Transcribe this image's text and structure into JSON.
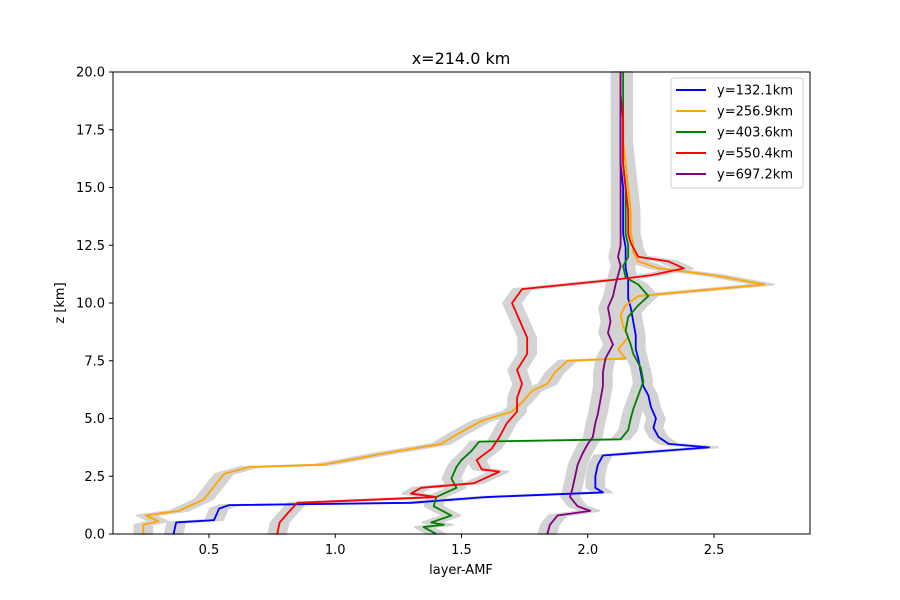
{
  "chart_data": {
    "type": "line",
    "title": "x=214.0 km",
    "xlabel": "layer-AMF",
    "ylabel": "z [km]",
    "xlim": [
      0.12,
      2.88
    ],
    "ylim": [
      0,
      20
    ],
    "xticks": [
      0.5,
      1.0,
      1.5,
      2.0,
      2.5
    ],
    "xtick_labels": [
      "0.5",
      "1.0",
      "1.5",
      "2.0",
      "2.5"
    ],
    "yticks": [
      0,
      2.5,
      5,
      7.5,
      10,
      12.5,
      15,
      17.5,
      20
    ],
    "ytick_labels": [
      "0.0",
      "2.5",
      "5.0",
      "7.5",
      "10.0",
      "12.5",
      "15.0",
      "17.5",
      "20.0"
    ],
    "grid": false,
    "legend_position": "top-right",
    "uncertainty_band": true,
    "band_color": "#d3d3d3",
    "series": [
      {
        "name": "y=132.1km",
        "color": "#0000ff",
        "points": [
          [
            0.36,
            0
          ],
          [
            0.37,
            0.5
          ],
          [
            0.52,
            0.6
          ],
          [
            0.54,
            1.1
          ],
          [
            0.58,
            1.25
          ],
          [
            1.3,
            1.35
          ],
          [
            1.6,
            1.6
          ],
          [
            2.06,
            1.8
          ],
          [
            2.03,
            2.0
          ],
          [
            2.03,
            2.5
          ],
          [
            2.04,
            3.0
          ],
          [
            2.06,
            3.4
          ],
          [
            2.48,
            3.75
          ],
          [
            2.32,
            3.9
          ],
          [
            2.28,
            4.2
          ],
          [
            2.26,
            4.6
          ],
          [
            2.27,
            5.0
          ],
          [
            2.25,
            5.5
          ],
          [
            2.24,
            6.0
          ],
          [
            2.22,
            6.4
          ],
          [
            2.21,
            7.0
          ],
          [
            2.2,
            7.6
          ],
          [
            2.19,
            8.0
          ],
          [
            2.19,
            8.6
          ],
          [
            2.18,
            9.2
          ],
          [
            2.17,
            9.8
          ],
          [
            2.16,
            10.2
          ],
          [
            2.16,
            10.6
          ],
          [
            2.16,
            11.0
          ],
          [
            2.15,
            11.5
          ],
          [
            2.15,
            12.0
          ],
          [
            2.15,
            12.4
          ],
          [
            2.14,
            13.0
          ],
          [
            2.14,
            14.0
          ],
          [
            2.14,
            15.0
          ],
          [
            2.13,
            16.0
          ],
          [
            2.13,
            17.0
          ],
          [
            2.13,
            18.0
          ],
          [
            2.13,
            19.0
          ],
          [
            2.13,
            20.0
          ]
        ]
      },
      {
        "name": "y=256.9km",
        "color": "#ffa500",
        "points": [
          [
            0.24,
            0
          ],
          [
            0.24,
            0.4
          ],
          [
            0.3,
            0.55
          ],
          [
            0.25,
            0.8
          ],
          [
            0.38,
            1.0
          ],
          [
            0.48,
            1.5
          ],
          [
            0.53,
            2.2
          ],
          [
            0.56,
            2.6
          ],
          [
            0.66,
            2.9
          ],
          [
            0.95,
            3.0
          ],
          [
            1.05,
            3.2
          ],
          [
            1.2,
            3.5
          ],
          [
            1.42,
            3.9
          ],
          [
            1.48,
            4.3
          ],
          [
            1.58,
            4.9
          ],
          [
            1.7,
            5.3
          ],
          [
            1.74,
            5.7
          ],
          [
            1.78,
            6.2
          ],
          [
            1.84,
            6.5
          ],
          [
            1.87,
            7.0
          ],
          [
            1.92,
            7.5
          ],
          [
            2.15,
            7.6
          ],
          [
            2.12,
            8.0
          ],
          [
            2.16,
            8.5
          ],
          [
            2.14,
            9.0
          ],
          [
            2.13,
            9.5
          ],
          [
            2.15,
            9.9
          ],
          [
            2.2,
            10.3
          ],
          [
            2.7,
            10.8
          ],
          [
            2.5,
            11.2
          ],
          [
            2.28,
            11.5
          ],
          [
            2.2,
            11.8
          ],
          [
            2.18,
            12.2
          ],
          [
            2.18,
            12.6
          ],
          [
            2.17,
            13.0
          ],
          [
            2.17,
            14.0
          ],
          [
            2.16,
            15.0
          ],
          [
            2.15,
            16.0
          ],
          [
            2.14,
            17.0
          ],
          [
            2.14,
            18.0
          ],
          [
            2.13,
            19.0
          ],
          [
            2.13,
            20.0
          ]
        ]
      },
      {
        "name": "y=403.6km",
        "color": "#008000",
        "points": [
          [
            1.4,
            0
          ],
          [
            1.35,
            0.3
          ],
          [
            1.43,
            0.4
          ],
          [
            1.38,
            0.5
          ],
          [
            1.46,
            0.8
          ],
          [
            1.39,
            1.2
          ],
          [
            1.4,
            1.6
          ],
          [
            1.48,
            2.0
          ],
          [
            1.46,
            2.4
          ],
          [
            1.48,
            2.9
          ],
          [
            1.5,
            3.2
          ],
          [
            1.54,
            3.6
          ],
          [
            1.57,
            4.0
          ],
          [
            2.13,
            4.1
          ],
          [
            2.16,
            4.5
          ],
          [
            2.17,
            5.0
          ],
          [
            2.18,
            5.4
          ],
          [
            2.2,
            6.0
          ],
          [
            2.22,
            6.6
          ],
          [
            2.21,
            7.2
          ],
          [
            2.18,
            7.8
          ],
          [
            2.17,
            8.2
          ],
          [
            2.15,
            8.8
          ],
          [
            2.16,
            9.4
          ],
          [
            2.2,
            9.9
          ],
          [
            2.24,
            10.3
          ],
          [
            2.2,
            10.8
          ],
          [
            2.15,
            11.1
          ],
          [
            2.14,
            11.6
          ],
          [
            2.16,
            12.0
          ],
          [
            2.16,
            12.5
          ],
          [
            2.15,
            13.0
          ],
          [
            2.15,
            14.0
          ],
          [
            2.15,
            15.0
          ],
          [
            2.14,
            16.0
          ],
          [
            2.14,
            17.0
          ],
          [
            2.14,
            18.0
          ],
          [
            2.14,
            19.0
          ],
          [
            2.14,
            20.0
          ]
        ]
      },
      {
        "name": "y=550.4km",
        "color": "#ff0000",
        "points": [
          [
            0.77,
            0
          ],
          [
            0.78,
            0.5
          ],
          [
            0.82,
            1.0
          ],
          [
            0.85,
            1.35
          ],
          [
            1.4,
            1.6
          ],
          [
            1.3,
            1.75
          ],
          [
            1.34,
            2.0
          ],
          [
            1.55,
            2.2
          ],
          [
            1.65,
            2.7
          ],
          [
            1.58,
            2.8
          ],
          [
            1.56,
            3.2
          ],
          [
            1.62,
            3.7
          ],
          [
            1.65,
            4.2
          ],
          [
            1.68,
            4.8
          ],
          [
            1.72,
            5.3
          ],
          [
            1.72,
            5.9
          ],
          [
            1.74,
            6.5
          ],
          [
            1.72,
            7.1
          ],
          [
            1.76,
            7.8
          ],
          [
            1.76,
            8.5
          ],
          [
            1.74,
            9.0
          ],
          [
            1.72,
            9.5
          ],
          [
            1.7,
            10.0
          ],
          [
            1.74,
            10.6
          ],
          [
            2.1,
            11.0
          ],
          [
            2.25,
            11.2
          ],
          [
            2.38,
            11.5
          ],
          [
            2.32,
            11.8
          ],
          [
            2.2,
            12.0
          ],
          [
            2.17,
            12.6
          ],
          [
            2.16,
            13.0
          ],
          [
            2.16,
            14.0
          ],
          [
            2.15,
            15.0
          ],
          [
            2.14,
            16.0
          ],
          [
            2.14,
            17.0
          ],
          [
            2.14,
            18.0
          ],
          [
            2.13,
            19.0
          ],
          [
            2.13,
            20.0
          ]
        ]
      },
      {
        "name": "y=697.2km",
        "color": "#800080",
        "points": [
          [
            1.84,
            0
          ],
          [
            1.85,
            0.4
          ],
          [
            1.88,
            0.8
          ],
          [
            2.01,
            1.0
          ],
          [
            1.96,
            1.2
          ],
          [
            1.93,
            1.6
          ],
          [
            1.94,
            2.0
          ],
          [
            1.95,
            2.5
          ],
          [
            1.96,
            3.0
          ],
          [
            1.98,
            3.5
          ],
          [
            2.0,
            3.9
          ],
          [
            2.02,
            4.2
          ],
          [
            2.03,
            4.8
          ],
          [
            2.04,
            5.2
          ],
          [
            2.05,
            5.8
          ],
          [
            2.06,
            6.4
          ],
          [
            2.06,
            7.0
          ],
          [
            2.07,
            7.6
          ],
          [
            2.1,
            8.2
          ],
          [
            2.08,
            8.7
          ],
          [
            2.09,
            9.2
          ],
          [
            2.08,
            9.8
          ],
          [
            2.1,
            10.3
          ],
          [
            2.11,
            10.8
          ],
          [
            2.12,
            11.2
          ],
          [
            2.13,
            11.6
          ],
          [
            2.12,
            12.0
          ],
          [
            2.13,
            12.5
          ],
          [
            2.13,
            13.0
          ],
          [
            2.13,
            14.0
          ],
          [
            2.13,
            15.0
          ],
          [
            2.13,
            16.0
          ],
          [
            2.13,
            17.0
          ],
          [
            2.13,
            18.0
          ],
          [
            2.13,
            19.0
          ],
          [
            2.13,
            20.0
          ]
        ]
      }
    ]
  }
}
